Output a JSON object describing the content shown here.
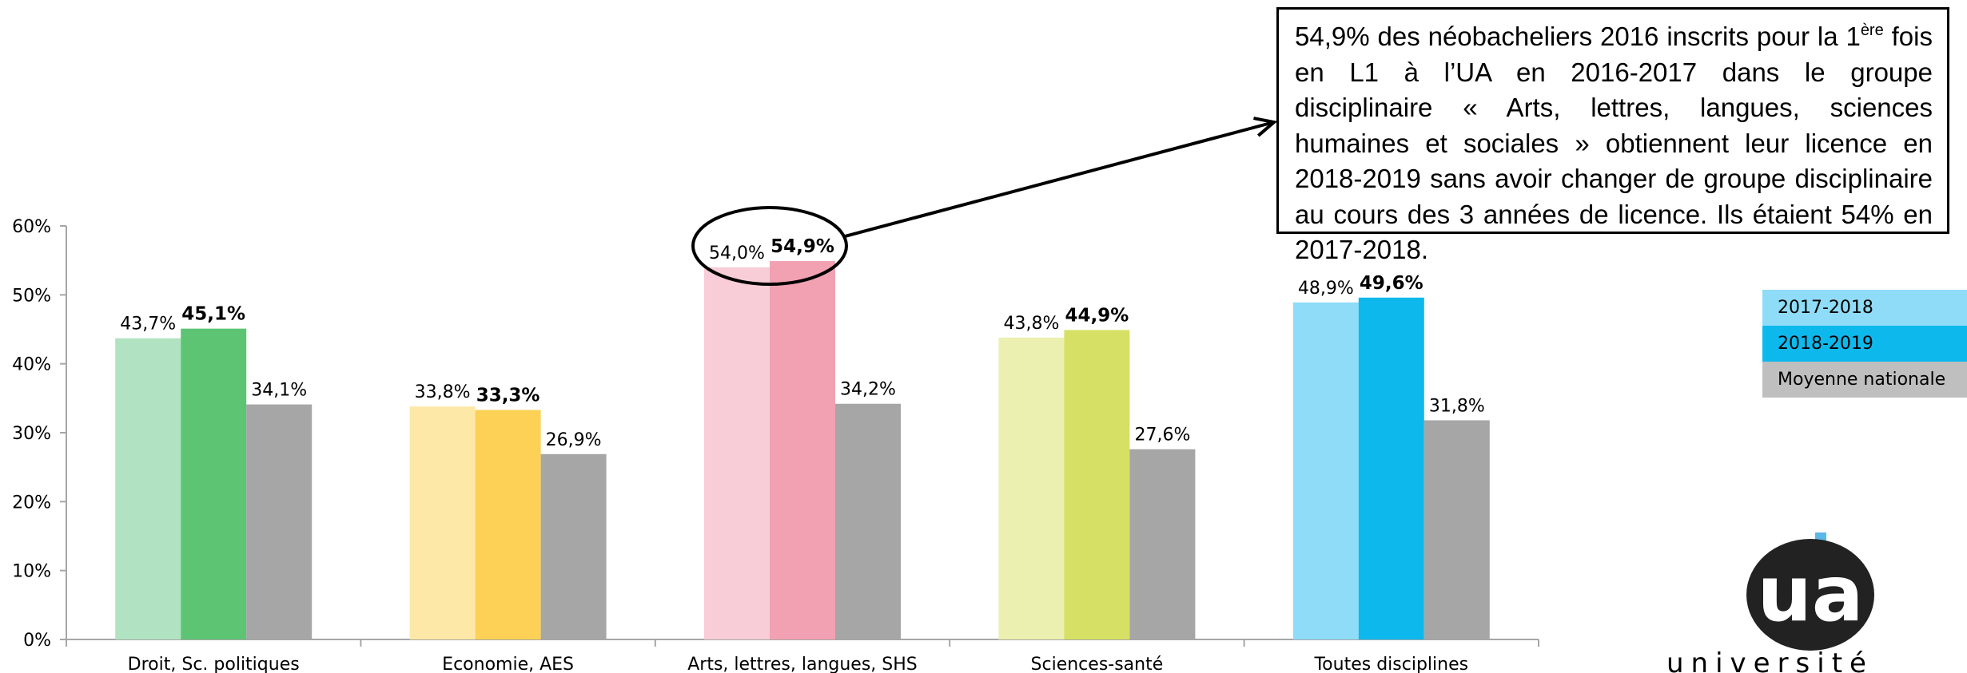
{
  "chart_data": {
    "type": "bar",
    "categories": [
      "Droit, Sc. politiques",
      "Economie, AES",
      "Arts, lettres, langues, SHS",
      "Sciences-santé",
      "Toutes disciplines"
    ],
    "series": [
      {
        "name": "2017-2018",
        "values": [
          43.7,
          33.8,
          54.0,
          43.8,
          48.9
        ],
        "labels": [
          "43,7%",
          "33,8%",
          "54,0%",
          "43,8%",
          "48,9%"
        ],
        "colors": [
          "#b1e2c1",
          "#fde8a8",
          "#f8cdd7",
          "#ebf0b1",
          "#8edcf7"
        ]
      },
      {
        "name": "2018-2019",
        "values": [
          45.1,
          33.3,
          54.9,
          44.9,
          49.6
        ],
        "labels": [
          "45,1%",
          "33,3%",
          "54,9%",
          "44,9%",
          "49,6%"
        ],
        "colors": [
          "#5dc474",
          "#fcd155",
          "#f1a1b2",
          "#d6e065",
          "#0db8ec"
        ]
      },
      {
        "name": "Moyenne nationale",
        "values": [
          34.1,
          26.9,
          34.2,
          27.6,
          31.8
        ],
        "labels": [
          "34,1%",
          "26,9%",
          "34,2%",
          "27,6%",
          "31,8%"
        ],
        "colors": [
          "#a6a6a6",
          "#a6a6a6",
          "#a6a6a6",
          "#a6a6a6",
          "#a6a6a6"
        ]
      }
    ],
    "yticks": [
      "0%",
      "10%",
      "20%",
      "30%",
      "40%",
      "50%",
      "60%"
    ],
    "ylim": [
      0,
      60
    ],
    "grid": false,
    "legend_position": "right",
    "legend_colors": [
      "#8edcf7",
      "#0db8ec",
      "#bfbfbf"
    ],
    "highlight": {
      "category_index": 2
    }
  },
  "annotation": {
    "part1": "54,9% des néobacheliers 2016 inscrits pour la 1",
    "sup": "ère",
    "part2": " fois en L1 à l’UA en 2016-2017 dans le groupe disciplinaire « Arts, lettres, langues, sciences humaines et sociales » obtiennent leur licence en 2018-2019 sans avoir changer de groupe disciplinaire au cours des 3 années de licence. Ils étaient 54% en 2017-2018."
  },
  "logo": {
    "letters": "ua",
    "text": "université"
  }
}
